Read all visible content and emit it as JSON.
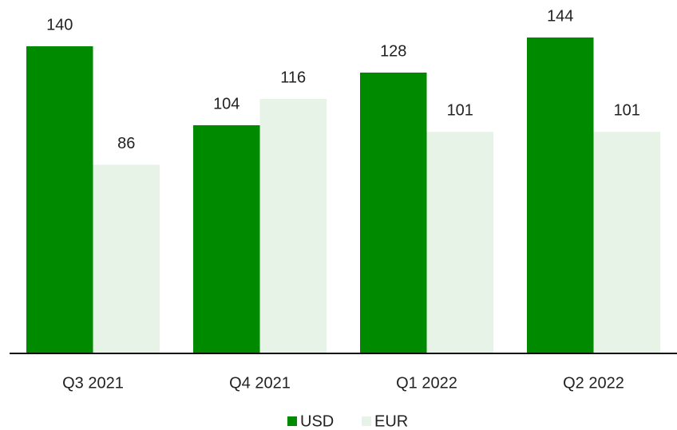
{
  "chart_data": {
    "type": "bar",
    "categories": [
      "Q3 2021",
      "Q4 2021",
      "Q1 2022",
      "Q2 2022"
    ],
    "series": [
      {
        "name": "USD",
        "color": "#008a00",
        "values": [
          140,
          104,
          128,
          144
        ]
      },
      {
        "name": "EUR",
        "color": "#e6f3e6",
        "values": [
          86,
          116,
          101,
          101
        ]
      }
    ],
    "legend": "bottom"
  }
}
